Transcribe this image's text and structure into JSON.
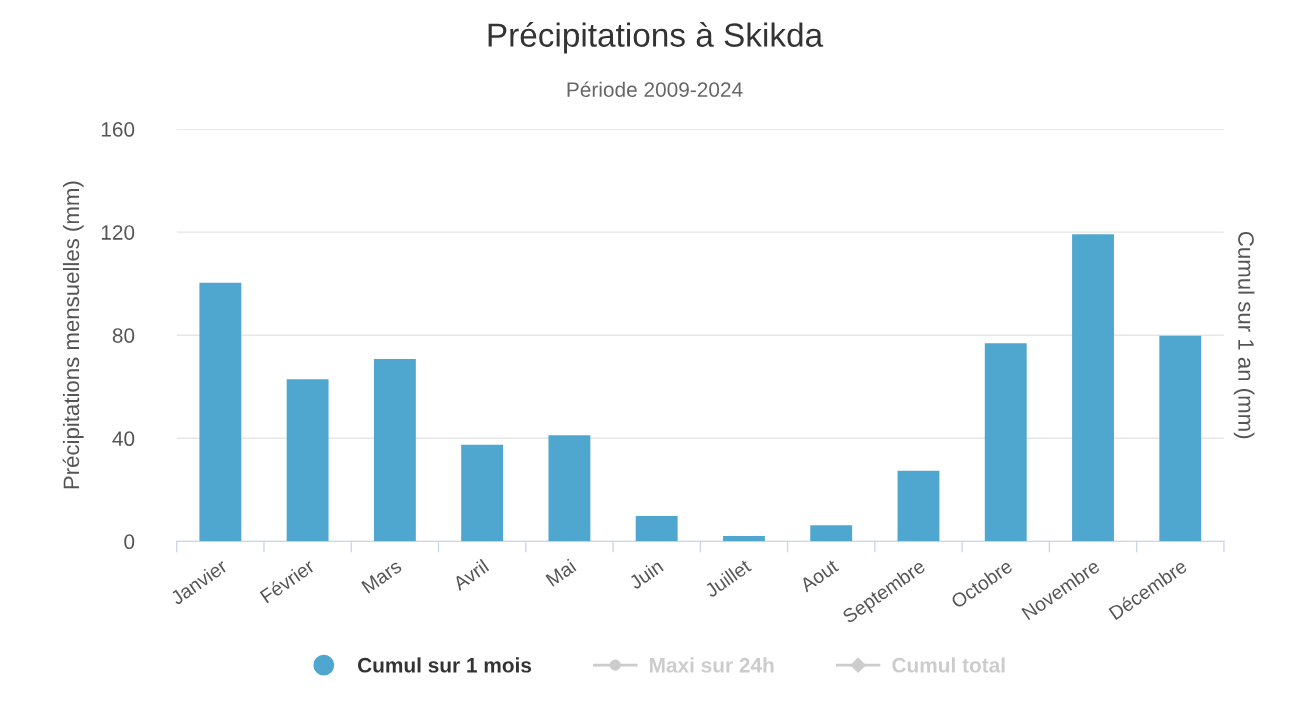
{
  "chart_data": {
    "type": "bar",
    "title": "Précipitations à Skikda",
    "subtitle": "Période 2009-2024",
    "ylabel": "Précipitations mensuelles (mm)",
    "y2label": "Cumul sur 1 an (mm)",
    "categories": [
      "Janvier",
      "Février",
      "Mars",
      "Avril",
      "Mai",
      "Juin",
      "Juillet",
      "Aout",
      "Septembre",
      "Octobre",
      "Novembre",
      "Décembre"
    ],
    "series": [
      {
        "name": "Cumul sur 1 mois",
        "color": "#4fa7cf",
        "values": [
          100.4,
          62.9,
          70.8,
          37.5,
          41.2,
          9.8,
          2.1,
          6.2,
          27.4,
          76.9,
          119.2,
          79.8
        ]
      },
      {
        "name": "Maxi sur 24h",
        "type": "line",
        "color": "#cccccc",
        "marker": "circle",
        "values": [
          null,
          null,
          null,
          null,
          null,
          null,
          null,
          null,
          null,
          null,
          null,
          null
        ]
      },
      {
        "name": "Cumul total",
        "type": "line",
        "color": "#cccccc",
        "marker": "diamond",
        "values": [
          null,
          null,
          null,
          null,
          null,
          null,
          null,
          null,
          null,
          null,
          null,
          null
        ]
      }
    ],
    "ylim": [
      0,
      160
    ],
    "yticks": [
      0,
      40,
      80,
      120,
      160
    ],
    "grid": "y",
    "legend": "bottom"
  }
}
